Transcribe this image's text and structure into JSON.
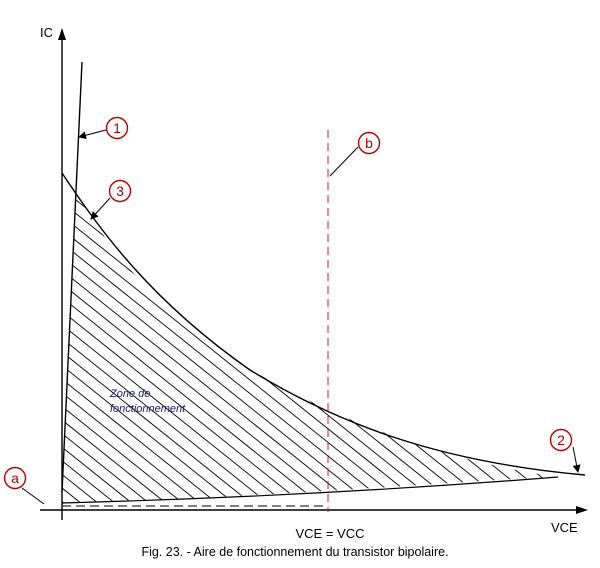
{
  "axes": {
    "y_label": "IC",
    "x_label": "VCE",
    "x_marker_label": "VCE = VCC"
  },
  "zone_label": {
    "line1": "Zone de",
    "line2": "fonctionnement"
  },
  "markers": {
    "m1": "1",
    "m2": "2",
    "m3": "3",
    "ma": "a",
    "mb": "b"
  },
  "caption": "Fig. 23. - Aire de fonctionnement du transistor bipolaire.",
  "colors": {
    "curve": "#000000",
    "markers": "#b00000",
    "vcc_line": "#c02020",
    "zone_text": "#1a1a6e"
  }
}
